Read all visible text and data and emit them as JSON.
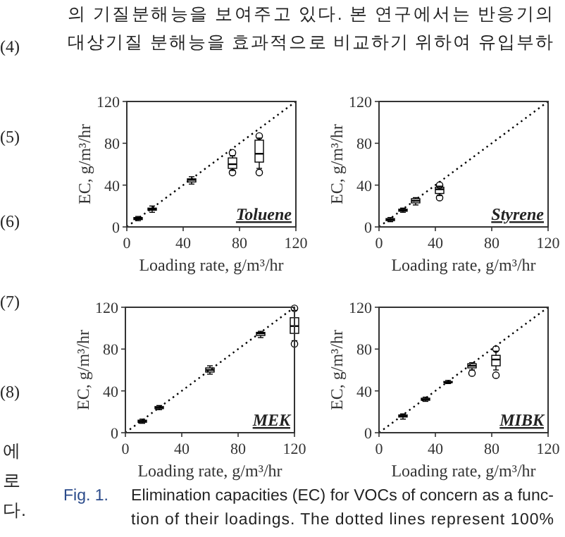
{
  "chart_data": [
    {
      "type": "box",
      "title": "Toluene",
      "xlabel": "Loading rate, g/m³/hr",
      "ylabel": "EC, g/m³/hr",
      "xlim": [
        0,
        120
      ],
      "ylim": [
        0,
        120
      ],
      "xticks": [
        0,
        40,
        80,
        120
      ],
      "yticks": [
        0,
        40,
        80,
        120
      ],
      "annotations": [
        "의 기질분해능을 보여주고 있다. 본 연구에서는 반응기의",
        "대상기질 분해능을 효과적으로 비교하기 위하여 유입부하",
        "(4)",
        "(5)",
        "(6)",
        "(7)",
        "(8)",
        "에",
        "로",
        "다.",
        "Fig. 1.",
        "Elimination capacities (EC) for VOCs of concern as a func-",
        "tion of their loadings. The dotted lines represent 100%"
      ],
      "series": [
        {
          "color": "#000000",
          "x": [
            8,
            18,
            46,
            75,
            94
          ],
          "boxes": [
            {
              "low": 6,
              "q1": 7,
              "median": 8,
              "q3": 9,
              "high": 10
            },
            {
              "low": 14,
              "q1": 16,
              "median": 17,
              "q3": 18,
              "high": 20
            },
            {
              "low": 41,
              "q1": 43,
              "median": 45,
              "q3": 46,
              "high": 48
            },
            {
              "low": 54,
              "q1": 56,
              "median": 60,
              "q3": 66,
              "high": 68,
              "outliers": [
                52,
                71
              ]
            },
            {
              "low": 56,
              "q1": 62,
              "median": 70,
              "q3": 83,
              "high": 85,
              "outliers": [
                52,
                87
              ]
            }
          ]
        },
        {
          "type": "line",
          "color": "#000000",
          "line_style": "dotted",
          "x": [
            0,
            120
          ],
          "values": [
            0,
            120
          ]
        }
      ]
    },
    {
      "type": "box",
      "title": "Styrene",
      "xlabel": "Loading rate, g/m³/hr",
      "ylabel": "EC, g/m³/hr",
      "xlim": [
        0,
        120
      ],
      "ylim": [
        0,
        120
      ],
      "xticks": [
        0,
        40,
        80,
        120
      ],
      "yticks": [
        0,
        40,
        80,
        120
      ],
      "series": [
        {
          "color": "#000000",
          "x": [
            8,
            17,
            26,
            43
          ],
          "boxes": [
            {
              "low": 5,
              "q1": 6,
              "median": 7,
              "q3": 8,
              "high": 9
            },
            {
              "low": 14,
              "q1": 15,
              "median": 16,
              "q3": 17,
              "high": 18
            },
            {
              "low": 21,
              "q1": 23,
              "median": 25,
              "q3": 27,
              "high": 28
            },
            {
              "low": 30,
              "q1": 32,
              "median": 36,
              "q3": 38,
              "high": 39,
              "outliers": [
                28,
                40
              ]
            }
          ]
        },
        {
          "type": "line",
          "color": "#000000",
          "line_style": "dotted",
          "x": [
            0,
            120
          ],
          "values": [
            0,
            120
          ]
        }
      ]
    },
    {
      "type": "box",
      "title": "MEK",
      "xlabel": "Loading rate, g/m³/hr",
      "ylabel": "EC, g/m³/hr",
      "xlim": [
        0,
        120
      ],
      "ylim": [
        0,
        120
      ],
      "xticks": [
        0,
        40,
        80,
        120
      ],
      "yticks": [
        0,
        40,
        80,
        120
      ],
      "series": [
        {
          "color": "#000000",
          "x": [
            12,
            24,
            60,
            96,
            120
          ],
          "boxes": [
            {
              "low": 9,
              "q1": 10,
              "median": 11,
              "q3": 12,
              "high": 13
            },
            {
              "low": 22,
              "q1": 23,
              "median": 24,
              "q3": 25,
              "high": 26
            },
            {
              "low": 56,
              "q1": 58,
              "median": 60,
              "q3": 62,
              "high": 64
            },
            {
              "low": 91,
              "q1": 93,
              "median": 95,
              "q3": 96,
              "high": 97
            },
            {
              "low": 88,
              "q1": 95,
              "median": 102,
              "q3": 110,
              "high": 117,
              "outliers": [
                85,
                119
              ]
            }
          ]
        },
        {
          "type": "line",
          "color": "#000000",
          "line_style": "dotted",
          "x": [
            0,
            120
          ],
          "values": [
            0,
            120
          ]
        }
      ]
    },
    {
      "type": "box",
      "title": "MIBK",
      "xlabel": "Loading rate, g/m³/hr",
      "ylabel": "EC, g/m³/hr",
      "xlim": [
        0,
        120
      ],
      "ylim": [
        0,
        120
      ],
      "xticks": [
        0,
        40,
        80,
        120
      ],
      "yticks": [
        0,
        40,
        80,
        120
      ],
      "series": [
        {
          "color": "#000000",
          "x": [
            17,
            33,
            49,
            66,
            83
          ],
          "boxes": [
            {
              "low": 13,
              "q1": 15,
              "median": 16,
              "q3": 17,
              "high": 18
            },
            {
              "low": 30,
              "q1": 31,
              "median": 32,
              "q3": 33,
              "high": 34
            },
            {
              "low": 47,
              "q1": 48,
              "median": 48,
              "q3": 49,
              "high": 50
            },
            {
              "low": 60,
              "q1": 62,
              "median": 64,
              "q3": 66,
              "high": 67,
              "outliers": [
                57
              ]
            },
            {
              "low": 60,
              "q1": 64,
              "median": 70,
              "q3": 74,
              "high": 78,
              "outliers": [
                55,
                80
              ]
            }
          ]
        },
        {
          "type": "line",
          "color": "#000000",
          "line_style": "dotted",
          "x": [
            0,
            120
          ],
          "values": [
            0,
            120
          ]
        }
      ]
    }
  ]
}
